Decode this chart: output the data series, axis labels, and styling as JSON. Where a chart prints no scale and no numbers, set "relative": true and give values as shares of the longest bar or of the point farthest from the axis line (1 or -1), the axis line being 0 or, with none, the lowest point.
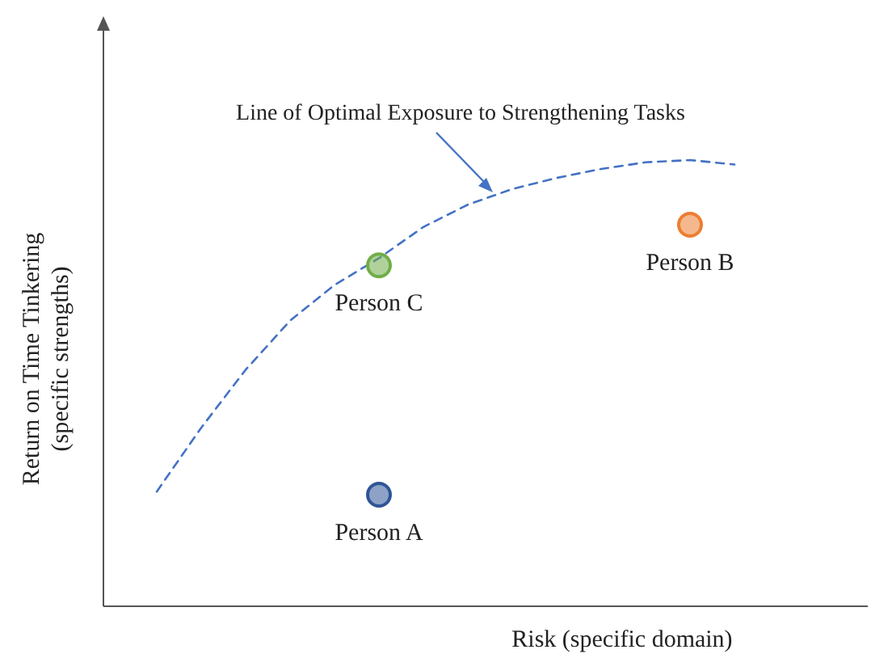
{
  "chart_data": {
    "type": "line",
    "relative": true,
    "xlabel": "Risk (specific domain)",
    "ylabel": "Return on Time Tinkering\n(specific strengths)",
    "categories": [
      null,
      null,
      null,
      null,
      null,
      null,
      null,
      null,
      null,
      null,
      null,
      null,
      null,
      null
    ],
    "series": [
      {
        "type": "line",
        "line_style": "dashed",
        "marker": "none",
        "color": "#4472c4",
        "values": [
          0.257,
          0.4,
          0.53,
          0.64,
          0.72,
          0.78,
          0.85,
          0.9,
          0.935,
          0.96,
          0.98,
          0.995,
          1,
          0.99
        ]
      },
      {
        "name": "Person A",
        "line_style": "none",
        "marker": "circle",
        "color": "#2f5597",
        "values": [
          null,
          null,
          null,
          null,
          null,
          0.25,
          null,
          null,
          null,
          null,
          null,
          null,
          null,
          null
        ]
      },
      {
        "name": "Person B",
        "line_style": "none",
        "marker": "circle",
        "color": "#ed7d31",
        "values": [
          null,
          null,
          null,
          null,
          null,
          null,
          null,
          null,
          null,
          null,
          null,
          null,
          0.855,
          null
        ]
      },
      {
        "name": "Person C",
        "line_style": "none",
        "marker": "circle",
        "color": "#70ad47",
        "values": [
          null,
          null,
          null,
          null,
          null,
          0.764,
          null,
          null,
          null,
          null,
          null,
          null,
          null,
          null
        ]
      }
    ],
    "annotations": [
      "Line of Optimal Exposure to Strengthening Tasks"
    ]
  }
}
